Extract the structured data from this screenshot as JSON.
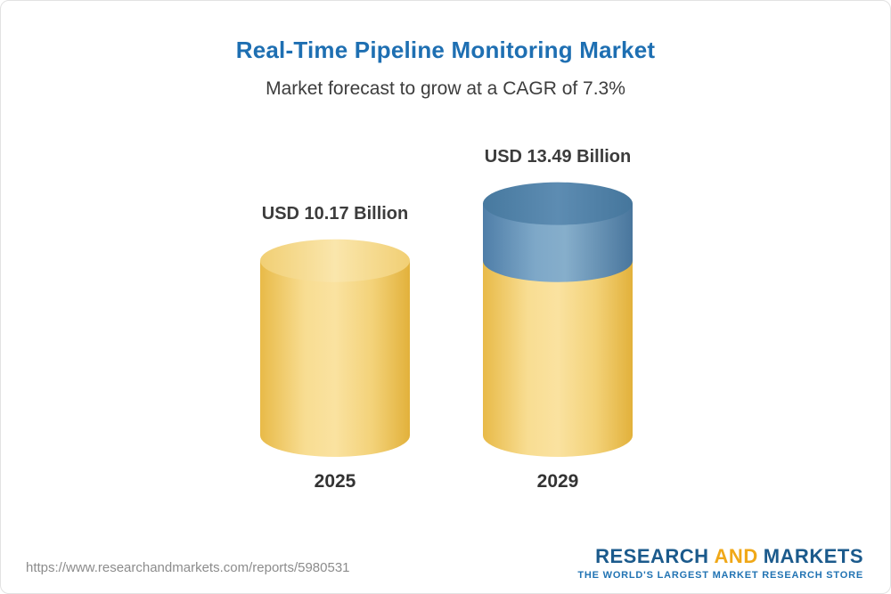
{
  "chart_data": {
    "type": "bar",
    "bar_style": "3d-cylinder",
    "title": "Real-Time Pipeline Monitoring Market",
    "subtitle": "Market forecast to grow at a CAGR of 7.3%",
    "categories": [
      "2025",
      "2029"
    ],
    "values": [
      10.17,
      13.49
    ],
    "value_labels": [
      "USD 10.17 Billion",
      "USD 13.49 Billion"
    ],
    "unit": "USD Billion",
    "cagr_percent": 7.3,
    "xlabel": "",
    "ylabel": "",
    "grid": false,
    "legend": false,
    "base_color": "#F5CE63",
    "growth_segment_color": "#6795BC",
    "growth_segment_note": "2029 cylinder shows the 2025 baseline in gold with the incremental growth segment in blue on top"
  },
  "footer": {
    "report_url": "https://www.researchandmarkets.com/reports/5980531",
    "logo": {
      "word_research": "RESEARCH",
      "word_and": "AND",
      "word_markets": "MARKETS",
      "tagline": "THE WORLD'S LARGEST MARKET RESEARCH STORE"
    }
  },
  "colors": {
    "title_blue": "#1E6FB2",
    "text_dark": "#3C3C3C",
    "url_gray": "#8C8C8C",
    "logo_blue": "#1B5A8C",
    "logo_gold": "#F0A818"
  }
}
